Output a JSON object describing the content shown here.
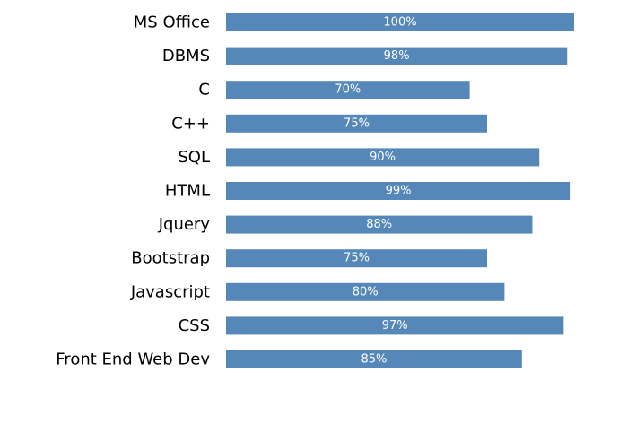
{
  "chart_data": {
    "type": "bar",
    "orientation": "horizontal",
    "categories": [
      "MS Office",
      "DBMS",
      "C",
      "C++",
      "SQL",
      "HTML",
      "Jquery",
      "Bootstrap",
      "Javascript",
      "CSS",
      "Front End Web Dev"
    ],
    "values": [
      100,
      98,
      70,
      75,
      90,
      99,
      88,
      75,
      80,
      97,
      85
    ],
    "value_labels": [
      "100%",
      "98%",
      "70%",
      "75%",
      "90%",
      "99%",
      "88%",
      "75%",
      "80%",
      "97%",
      "85%"
    ],
    "xlim": [
      0,
      100
    ],
    "grid": false,
    "legend": "none",
    "bar_color": "#5588b9"
  }
}
